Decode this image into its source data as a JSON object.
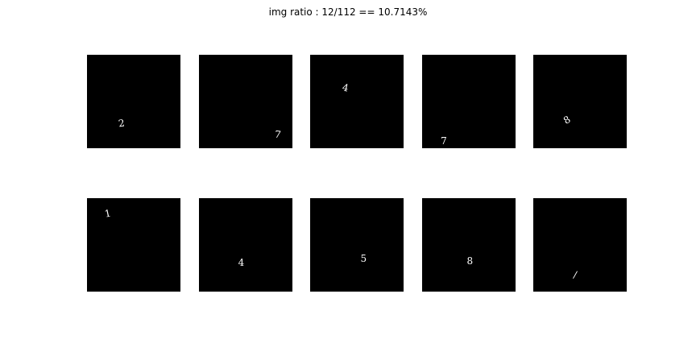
{
  "figure": {
    "title": "img ratio : 12/112 == 10.7143%"
  },
  "chart_data": {
    "type": "image-grid",
    "title": "img ratio : 12/112 == 10.7143%",
    "rows": 2,
    "cols": 5,
    "panel_background": "#000000",
    "digit_color": "#ffffff",
    "panels": [
      {
        "digit": "2",
        "x": 0.37,
        "y": 0.73,
        "rotate": -8
      },
      {
        "digit": "7",
        "x": 0.84,
        "y": 0.85,
        "rotate": 8
      },
      {
        "digit": "4",
        "x": 0.38,
        "y": 0.35,
        "rotate": 12
      },
      {
        "digit": "7",
        "x": 0.23,
        "y": 0.92,
        "rotate": 0
      },
      {
        "digit": "8",
        "x": 0.36,
        "y": 0.7,
        "rotate": -30
      },
      {
        "digit": "1",
        "x": 0.22,
        "y": 0.16,
        "rotate": -12
      },
      {
        "digit": "4",
        "x": 0.45,
        "y": 0.69,
        "rotate": 0
      },
      {
        "digit": "5",
        "x": 0.57,
        "y": 0.65,
        "rotate": 0
      },
      {
        "digit": "8",
        "x": 0.51,
        "y": 0.67,
        "rotate": 0
      },
      {
        "digit": "/",
        "x": 0.46,
        "y": 0.82,
        "rotate": 12
      }
    ]
  }
}
